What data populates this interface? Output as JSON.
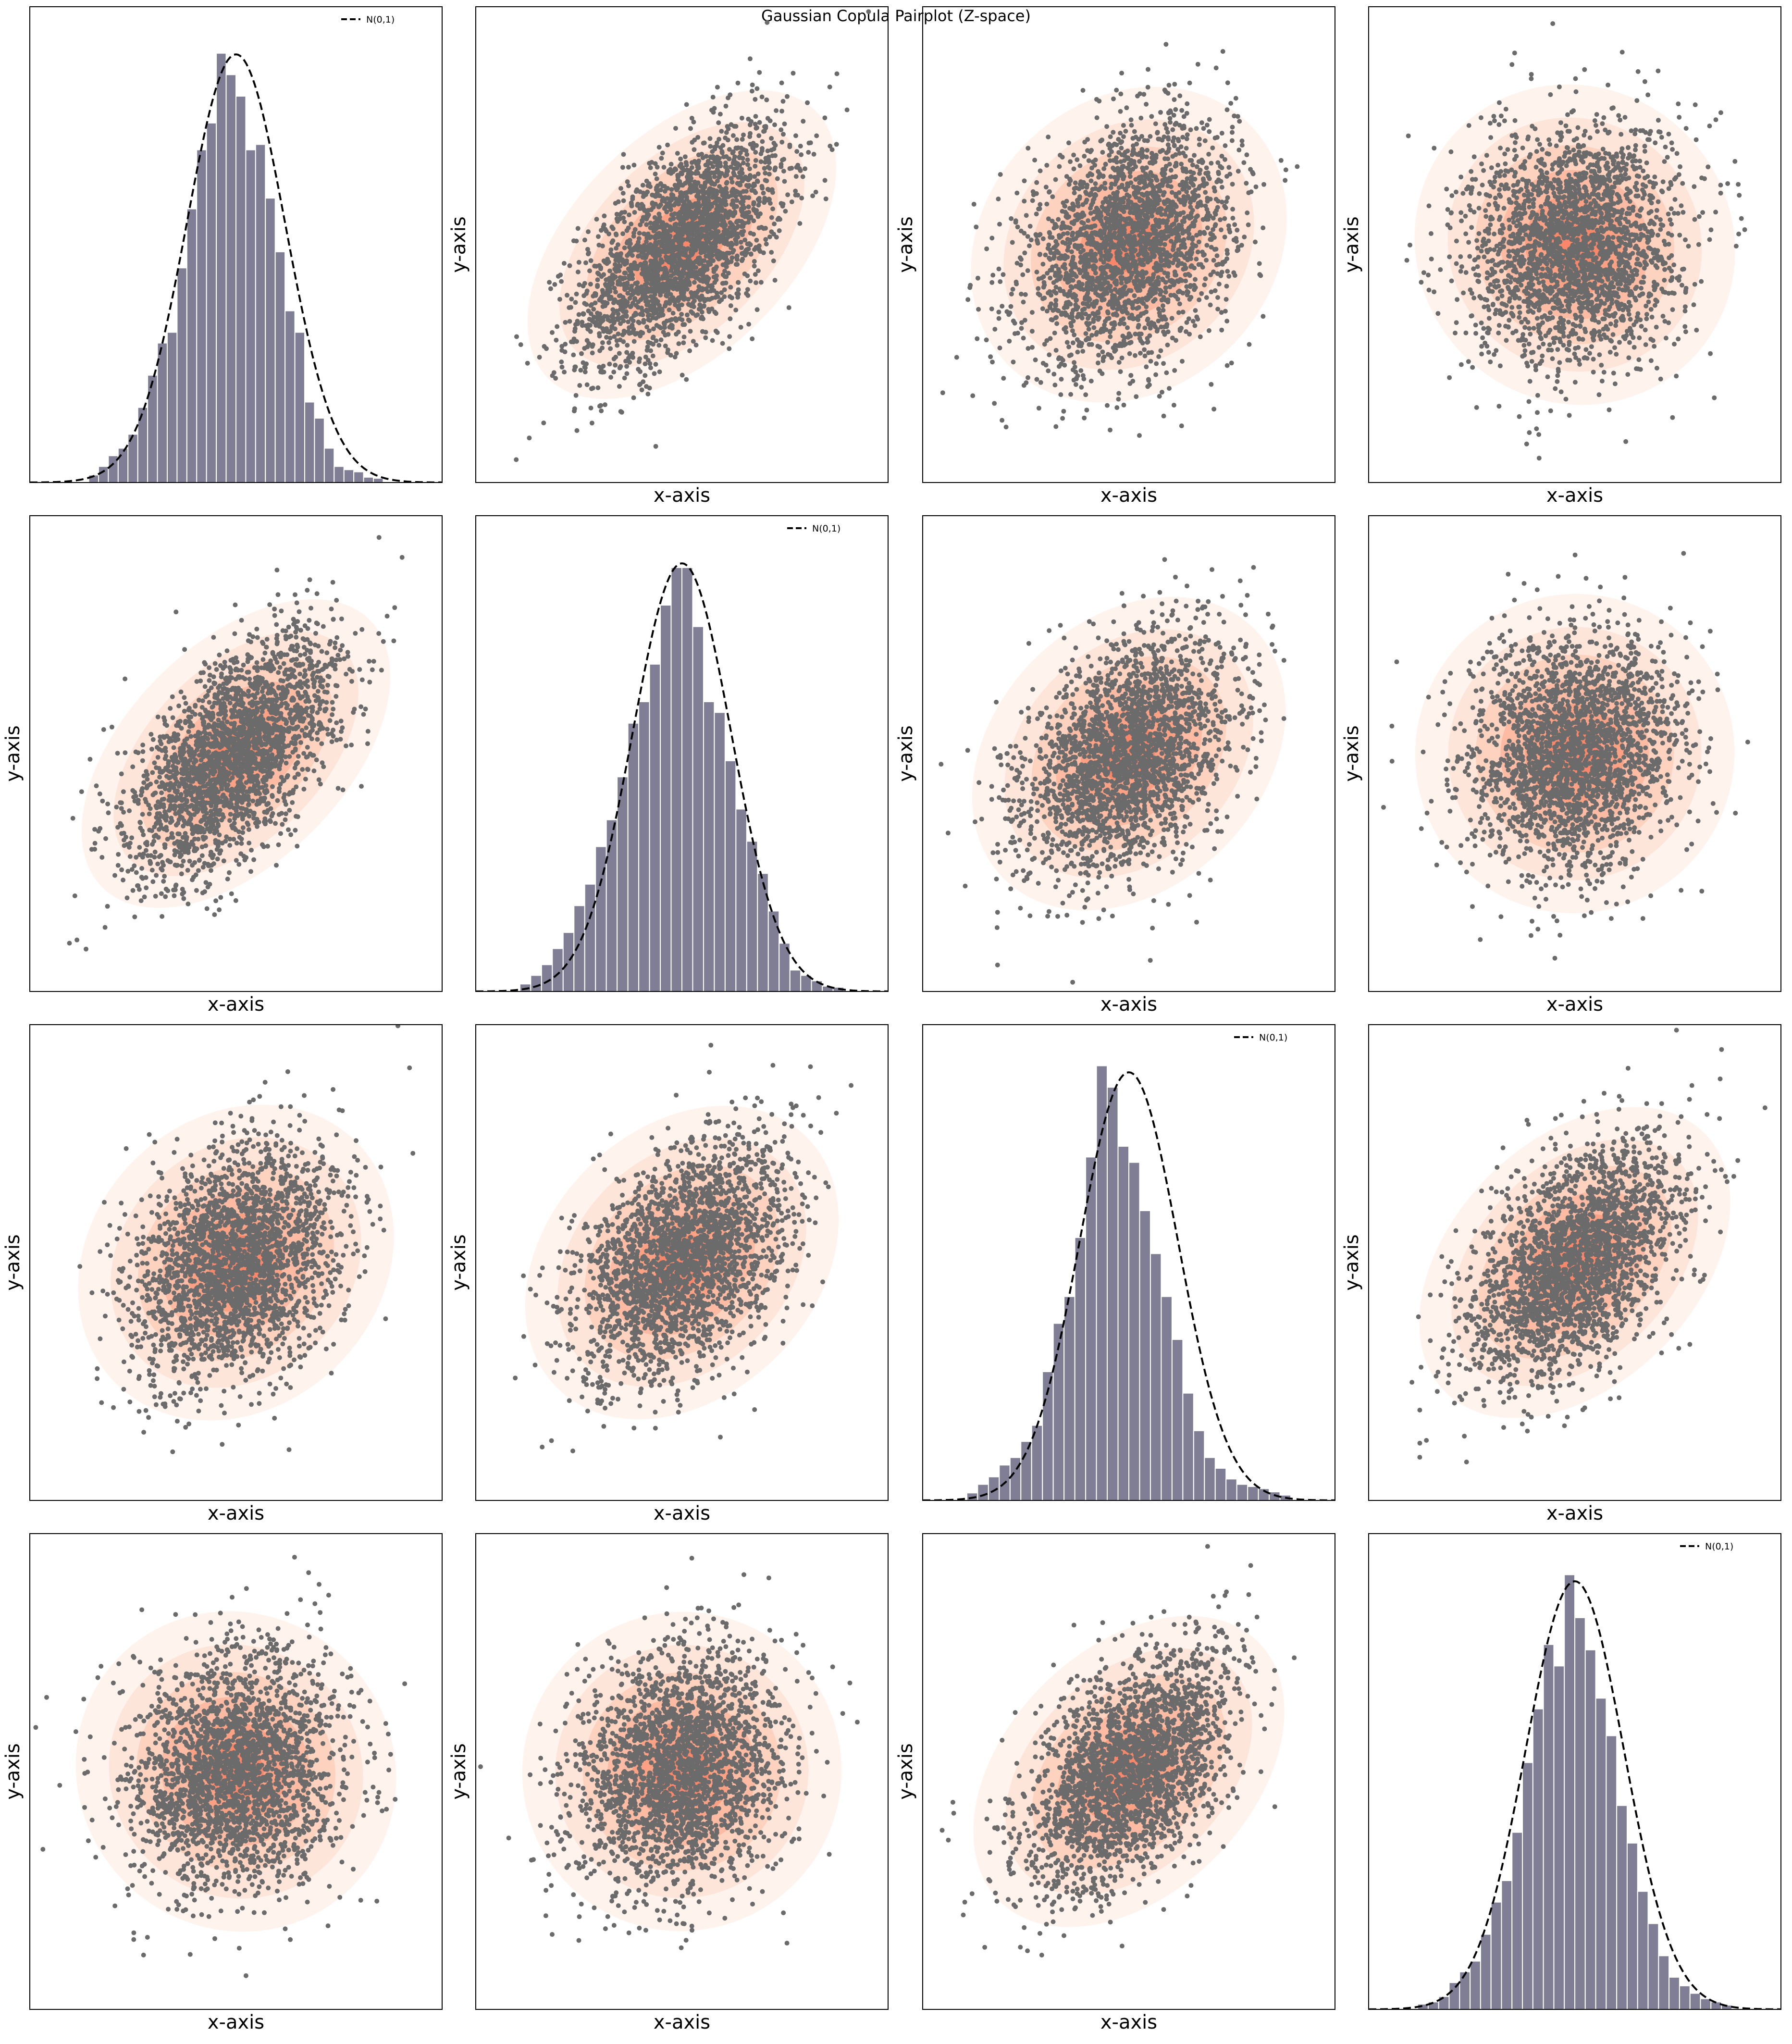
{
  "figure": {
    "title": "Gaussian Copula Pairplot (Z-space)"
  },
  "colors": {
    "background": "#ffffff",
    "frame": "#000000",
    "hist_bar": "#7f7e95",
    "hist_edge": "#ffffff",
    "normal_curve": "#000000",
    "scatter_point": "#6b6b6b",
    "kde_levels": [
      "#fff2ec",
      "#fee3d6",
      "#fdd0bc",
      "#fcb89e",
      "#fc9f81",
      "#f98467"
    ]
  },
  "chart_data": {
    "type": "pairplot",
    "grid": false,
    "legend_placement": "top-right",
    "n_vars": 4,
    "axis_labels": {
      "x": "x-axis",
      "y": "y-axis"
    },
    "diagonal": {
      "type": "bar",
      "legend_label": "N(0,1)",
      "curve": "dashed normal pdf",
      "xlim": [
        -4.2,
        4.2
      ],
      "bins": [
        {
          "range": [
            -3.0,
            3.0
          ],
          "density": [
            0.007,
            0.015,
            0.025,
            0.032,
            0.045,
            0.07,
            0.1,
            0.13,
            0.14,
            0.2,
            0.255,
            0.31,
            0.335,
            0.4,
            0.38,
            0.36,
            0.31,
            0.315,
            0.265,
            0.215,
            0.16,
            0.14,
            0.075,
            0.06,
            0.032,
            0.015,
            0.012,
            0.01,
            0.005,
            0.004
          ]
        },
        {
          "range": [
            -3.3,
            3.3
          ],
          "density": [
            0.007,
            0.015,
            0.025,
            0.04,
            0.055,
            0.08,
            0.1,
            0.135,
            0.16,
            0.2,
            0.25,
            0.27,
            0.305,
            0.36,
            0.395,
            0.395,
            0.34,
            0.27,
            0.26,
            0.215,
            0.17,
            0.14,
            0.11,
            0.075,
            0.045,
            0.02,
            0.015,
            0.01,
            0.005,
            0.004
          ]
        },
        {
          "range": [
            -3.3,
            3.3
          ],
          "density": [
            0.007,
            0.015,
            0.022,
            0.033,
            0.04,
            0.055,
            0.07,
            0.12,
            0.165,
            0.19,
            0.245,
            0.32,
            0.405,
            0.385,
            0.33,
            0.315,
            0.27,
            0.23,
            0.19,
            0.15,
            0.1,
            0.065,
            0.04,
            0.03,
            0.02,
            0.015,
            0.013,
            0.011,
            0.008,
            0.005
          ]
        },
        {
          "range": [
            -3.2,
            3.2
          ],
          "density": [
            0.005,
            0.007,
            0.012,
            0.025,
            0.035,
            0.045,
            0.07,
            0.1,
            0.12,
            0.165,
            0.23,
            0.28,
            0.34,
            0.32,
            0.405,
            0.365,
            0.335,
            0.29,
            0.255,
            0.19,
            0.155,
            0.11,
            0.08,
            0.05,
            0.03,
            0.022,
            0.015,
            0.01,
            0.007,
            0.004
          ]
        }
      ]
    },
    "off_diagonal": {
      "type": "scatter",
      "kde_fill": true,
      "n_points": 2400,
      "xlim": [
        -4,
        4
      ],
      "ylim": [
        -4,
        4
      ],
      "correlations": [
        [
          1.0,
          0.6,
          0.3,
          0.1
        ],
        [
          0.6,
          1.0,
          0.4,
          0.15
        ],
        [
          0.3,
          0.4,
          1.0,
          0.5
        ],
        [
          0.1,
          0.15,
          0.5,
          1.0
        ]
      ]
    }
  }
}
